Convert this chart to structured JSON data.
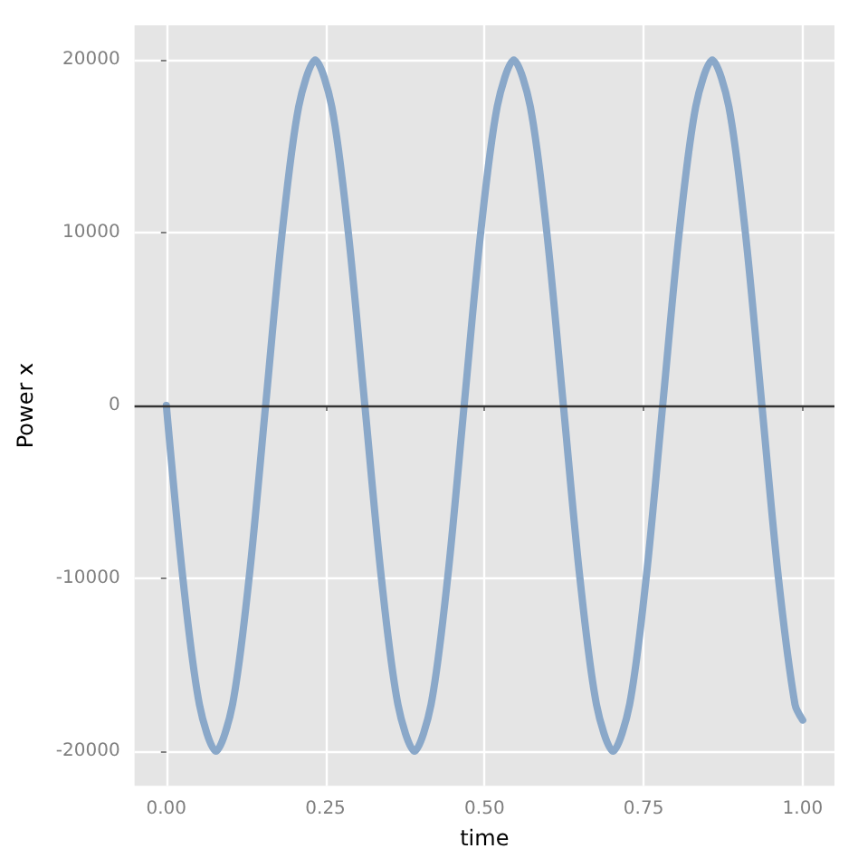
{
  "chart_data": {
    "type": "line",
    "xlabel": "time",
    "ylabel": "Power x",
    "x": [
      0,
      0.026,
      0.052,
      0.078,
      0.104,
      0.13,
      0.156,
      0.182,
      0.208,
      0.234,
      0.26,
      0.286,
      0.312,
      0.338,
      0.364,
      0.39,
      0.416,
      0.442,
      0.468,
      0.494,
      0.52,
      0.546,
      0.572,
      0.598,
      0.624,
      0.65,
      0.676,
      0.702,
      0.728,
      0.754,
      0.78,
      0.806,
      0.832,
      0.858,
      0.884,
      0.91,
      0.936,
      0.962,
      0.988,
      1.0
    ],
    "series": [
      {
        "color": "#8aa8c9",
        "values": [
          0,
          -10000,
          -17300,
          -20000,
          -17300,
          -10000,
          0,
          10000,
          17300,
          20000,
          17300,
          10000,
          0,
          -10000,
          -17300,
          -20000,
          -17300,
          -10000,
          0,
          10000,
          17300,
          20000,
          17300,
          10000,
          0,
          -10000,
          -17300,
          -20000,
          -17300,
          -10000,
          0,
          10000,
          17300,
          20000,
          17300,
          10000,
          0,
          -10000,
          -17300,
          -18200
        ]
      }
    ],
    "xlim": [
      -0.05,
      1.05
    ],
    "xticks": [
      {
        "value": 0,
        "label": "0.00"
      },
      {
        "value": 0.25,
        "label": "0.25"
      },
      {
        "value": 0.5,
        "label": "0.50"
      },
      {
        "value": 0.75,
        "label": "0.75"
      },
      {
        "value": 1,
        "label": "1.00"
      }
    ],
    "ylim": [
      -22000,
      22000
    ],
    "yticks": [
      -20000,
      -10000,
      0,
      10000,
      20000
    ],
    "ref_lines": [
      {
        "axis": "y",
        "value": 0,
        "color": "#333333"
      }
    ],
    "grid": true,
    "marker": "none",
    "line_style": "solid"
  }
}
